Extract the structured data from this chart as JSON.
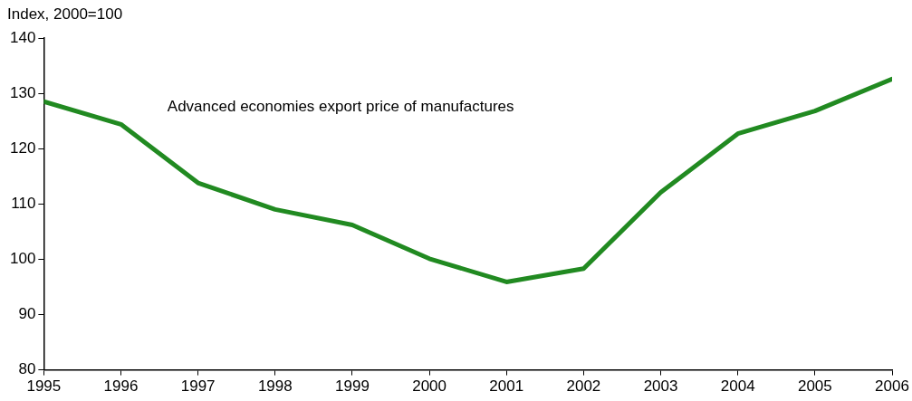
{
  "chart_data": {
    "type": "line",
    "ylabel": "Index, 2000=100",
    "x": [
      1995,
      1996,
      1997,
      1998,
      1999,
      2000,
      2001,
      2002,
      2003,
      2004,
      2005,
      2006
    ],
    "series": [
      {
        "name": "Advanced economies export price of manufactures",
        "color": "#218a21",
        "values": [
          128.5,
          124.4,
          113.8,
          109.0,
          106.2,
          100.1,
          95.9,
          98.3,
          112.1,
          122.7,
          126.8,
          132.6
        ]
      }
    ],
    "xlim": [
      1995,
      2006
    ],
    "xticks": [
      1995,
      1996,
      1997,
      1998,
      1999,
      2000,
      2001,
      2002,
      2003,
      2004,
      2005,
      2006
    ],
    "ylim": [
      80,
      140
    ],
    "yticks": [
      80,
      90,
      100,
      110,
      120,
      130,
      140
    ],
    "grid": false,
    "legend": false,
    "marker": "none",
    "line_style": "solid"
  }
}
